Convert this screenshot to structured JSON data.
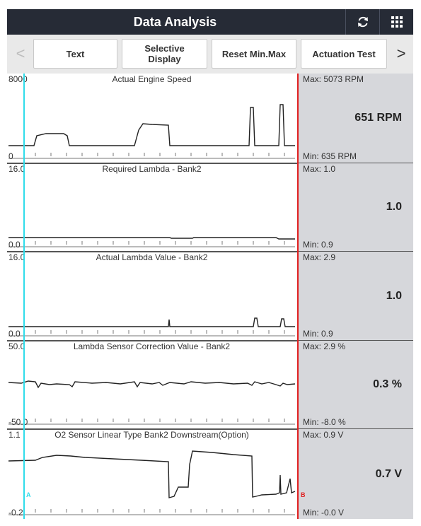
{
  "header": {
    "title": "Data Analysis",
    "refresh_icon": "refresh-icon",
    "grid_icon": "grid-menu-icon"
  },
  "toolbar": {
    "left_arrow": "<",
    "right_arrow": ">",
    "buttons": [
      {
        "label": "Text"
      },
      {
        "label": "Selective\nDisplay"
      },
      {
        "label": "Reset Min.Max"
      },
      {
        "label": "Actuation Test"
      }
    ]
  },
  "cursors": {
    "a_label": "A",
    "b_label": "B"
  },
  "colors": {
    "header_bg": "#262b36",
    "cursor_a": "#2fdcea",
    "cursor_b": "#e02020",
    "info_panel": "#d6d7db"
  },
  "panels": [
    {
      "title": "Actual Engine Speed",
      "y_max": "8000",
      "y_min": "0",
      "max_text": "Max: 5073 RPM",
      "min_text": "Min: 635 RPM",
      "current": "651 RPM"
    },
    {
      "title": "Required Lambda - Bank2",
      "y_max": "16.0",
      "y_min": "0.0",
      "max_text": "Max: 1.0",
      "min_text": "Min: 0.9",
      "current": "1.0"
    },
    {
      "title": "Actual Lambda Value - Bank2",
      "y_max": "16.0",
      "y_min": "0.0",
      "max_text": "Max: 2.9",
      "min_text": "Min: 0.9",
      "current": "1.0"
    },
    {
      "title": "Lambda Sensor Correction Value - Bank2",
      "y_max": "50.0",
      "y_min": "-50.0",
      "max_text": "Max: 2.9 %",
      "min_text": "Min: -8.0 %",
      "current": "0.3 %"
    },
    {
      "title": "O2 Sensor Linear Type Bank2 Downstream(Option)",
      "y_max": "1.1",
      "y_min": "-0.2",
      "max_text": "Max: 0.9 V",
      "min_text": "Min: -0.0 V",
      "current": "0.7 V"
    }
  ]
}
